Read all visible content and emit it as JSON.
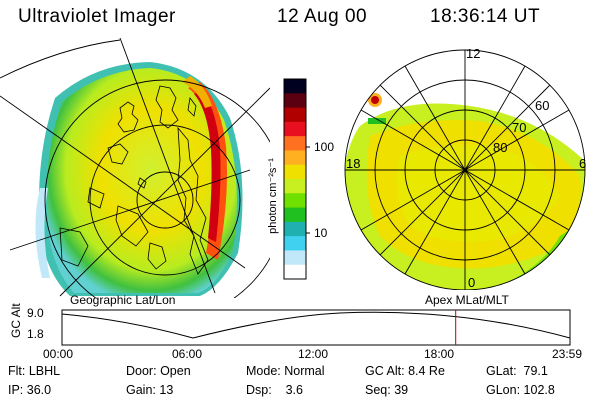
{
  "header": {
    "instrument": "Ultraviolet Imager",
    "date": "12 Aug 00",
    "time": "18:36:14 UT"
  },
  "left_panel": {
    "projection_label": "Geographic Lat/Lon"
  },
  "right_panel": {
    "projection_label": "Apex MLat/MLT",
    "mlt_labels": [
      "12",
      "18",
      "6",
      "0"
    ],
    "lat_labels": [
      "60",
      "70",
      "80"
    ]
  },
  "colorbar": {
    "units_label": "photon cm⁻²s⁻¹",
    "ticks": [
      "100",
      "10"
    ],
    "colors": [
      "#000020",
      "#5a0010",
      "#b00000",
      "#e81020",
      "#ff7020",
      "#ffb020",
      "#f0e000",
      "#c8f020",
      "#70e000",
      "#20c020",
      "#20b0b0",
      "#40d0f0",
      "#c0e8f8",
      "#ffffff"
    ]
  },
  "altitude_plot": {
    "ylabel": "GC Alt",
    "yticks": [
      "9.0",
      "1.8"
    ],
    "xticks": [
      "00:00",
      "06:00",
      "12:00",
      "18:00",
      "23:59"
    ],
    "marker_time_hours": 18.6
  },
  "info": {
    "filter": {
      "label": "Flt:",
      "value": "LBHL"
    },
    "ip": {
      "label": "IP:",
      "value": "36.0"
    },
    "door": {
      "label": "Door:",
      "value": "Open"
    },
    "gain": {
      "label": "Gain:",
      "value": "13"
    },
    "mode": {
      "label": "Mode:",
      "value": "Normal"
    },
    "dsp": {
      "label": "Dsp:",
      "value": "3.6"
    },
    "gc_alt": {
      "label": "GC Alt:",
      "value": "8.4 Re"
    },
    "seq": {
      "label": "Seq:",
      "value": "39"
    },
    "glat": {
      "label": "GLat:",
      "value": "79.1"
    },
    "glon": {
      "label": "GLon:",
      "value": "102.8"
    }
  }
}
